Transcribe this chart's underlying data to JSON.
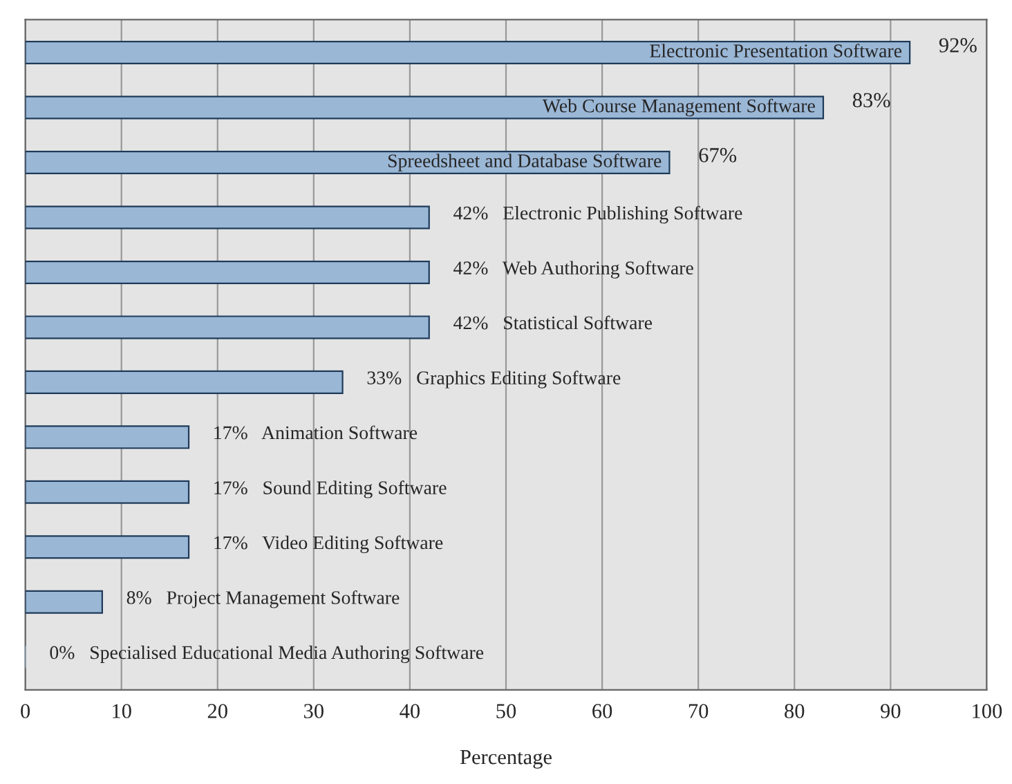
{
  "chart_data": {
    "type": "bar",
    "orientation": "horizontal",
    "xlabel": "Percentage",
    "categories": [
      "Electronic Presentation Software",
      "Web Course Management Software",
      "Spreedsheet and Database Software",
      "Electronic Publishing Software",
      "Web Authoring Software",
      "Statistical Software",
      "Graphics Editing Software",
      "Animation Software",
      "Sound Editing Software",
      "Video Editing Software",
      "Project Management Software",
      "Specialised Educational Media Authoring Software"
    ],
    "values": [
      92,
      83,
      67,
      42,
      42,
      42,
      33,
      17,
      17,
      17,
      8,
      0
    ],
    "value_labels": [
      "92%",
      "83%",
      "67%",
      "42%",
      "42%",
      "42%",
      "33%",
      "17%",
      "17%",
      "17%",
      "8%",
      "0%"
    ],
    "color": "#9bb7d6",
    "xlim": [
      0,
      100
    ],
    "xticks": [
      0,
      10,
      20,
      30,
      40,
      50,
      60,
      70,
      80,
      90,
      100
    ],
    "grid": "x",
    "tick_labels": "x"
  }
}
